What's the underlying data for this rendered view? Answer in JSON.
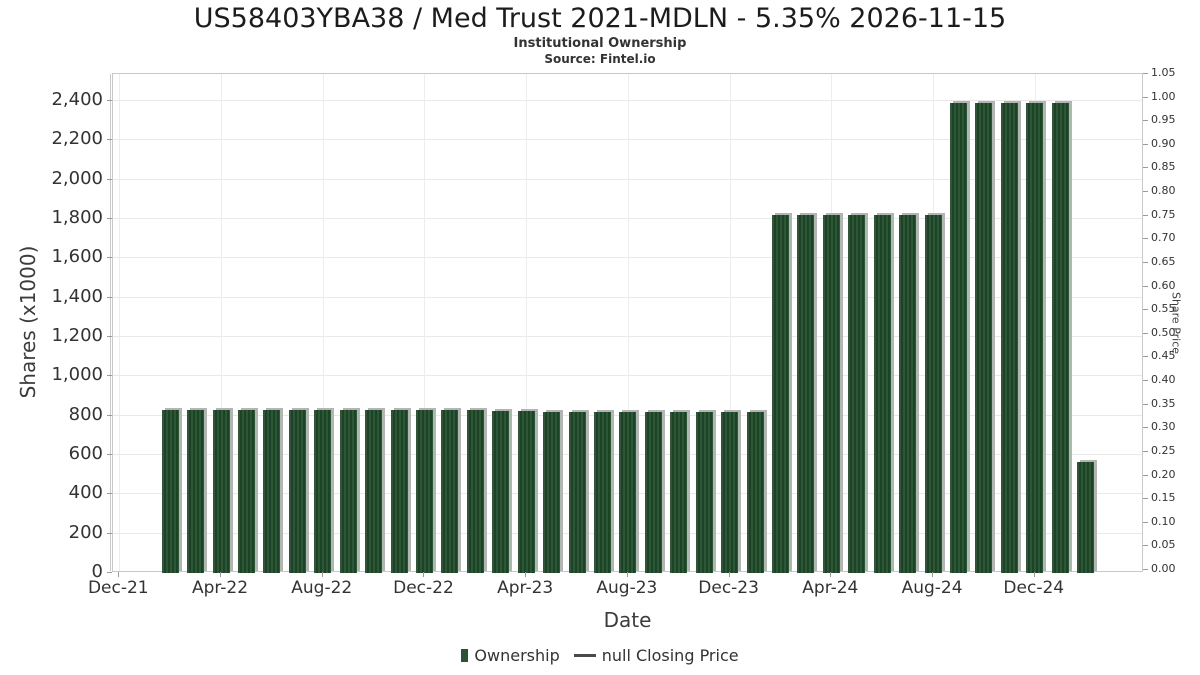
{
  "header": {
    "title": "US58403YBA38 / Med Trust 2021-MDLN - 5.35% 2026-11-15",
    "subtitle": "Institutional Ownership",
    "source": "Source: Fintel.io"
  },
  "chart_data": {
    "type": "bar",
    "title": "US58403YBA38 / Med Trust 2021-MDLN - 5.35% 2026-11-15",
    "subtitle": "Institutional Ownership",
    "source": "Source: Fintel.io",
    "xlabel": "Date",
    "ylabel_left": "Shares (x1000)",
    "ylabel_right": "Share Price",
    "categories": [
      "Feb-22",
      "Mar-22",
      "Apr-22",
      "May-22",
      "Jun-22",
      "Jul-22",
      "Aug-22",
      "Sep-22",
      "Oct-22",
      "Nov-22",
      "Dec-22",
      "Jan-23",
      "Feb-23",
      "Mar-23",
      "Apr-23",
      "May-23",
      "Jun-23",
      "Jul-23",
      "Aug-23",
      "Sep-23",
      "Oct-23",
      "Nov-23",
      "Dec-23",
      "Jan-24",
      "Feb-24",
      "Mar-24",
      "Apr-24",
      "May-24",
      "Jun-24",
      "Jul-24",
      "Aug-24",
      "Sep-24",
      "Oct-24",
      "Nov-24",
      "Dec-24",
      "Jan-25",
      "Feb-25"
    ],
    "series": [
      {
        "name": "Ownership",
        "values": [
          828,
          828,
          828,
          828,
          828,
          828,
          828,
          828,
          828,
          828,
          828,
          828,
          828,
          825,
          825,
          820,
          820,
          820,
          820,
          820,
          820,
          820,
          820,
          820,
          1820,
          1820,
          1820,
          1820,
          1820,
          1820,
          1820,
          2390,
          2390,
          2390,
          2390,
          2390,
          565
        ]
      },
      {
        "name": "null Closing Price",
        "values": []
      }
    ],
    "x_ticks": [
      "Dec-21",
      "Apr-22",
      "Aug-22",
      "Dec-22",
      "Apr-23",
      "Aug-23",
      "Dec-23",
      "Apr-24",
      "Aug-24",
      "Dec-24"
    ],
    "y_left_ticks": [
      "0",
      "200",
      "400",
      "600",
      "800",
      "1,000",
      "1,200",
      "1,400",
      "1,600",
      "1,800",
      "2,000",
      "2,200",
      "2,400"
    ],
    "y_right_ticks": [
      "0.00",
      "0.05",
      "0.10",
      "0.15",
      "0.20",
      "0.25",
      "0.30",
      "0.35",
      "0.40",
      "0.45",
      "0.50",
      "0.55",
      "0.60",
      "0.65",
      "0.70",
      "0.75",
      "0.80",
      "0.85",
      "0.90",
      "0.95",
      "1.00",
      "1.05"
    ],
    "y_left_range": {
      "min": 0,
      "max": 2400,
      "step": 200
    },
    "y_right_range": {
      "min": 0.0,
      "max": 1.05,
      "step": 0.05
    },
    "grid": true,
    "legend_position": "bottom",
    "legend": [
      {
        "label": "Ownership",
        "marker": "square",
        "color": "#2d5334"
      },
      {
        "label": "null Closing Price",
        "marker": "dash",
        "color": "#4a4a4a"
      }
    ],
    "colors": {
      "bar_light": "#2d5836",
      "bar_dark": "#1e4226",
      "bar_shadow": "#b4b4b4",
      "grid_line": "#e9e9e9",
      "axis_spine": "#c9c9c9",
      "text": "#333333"
    }
  }
}
